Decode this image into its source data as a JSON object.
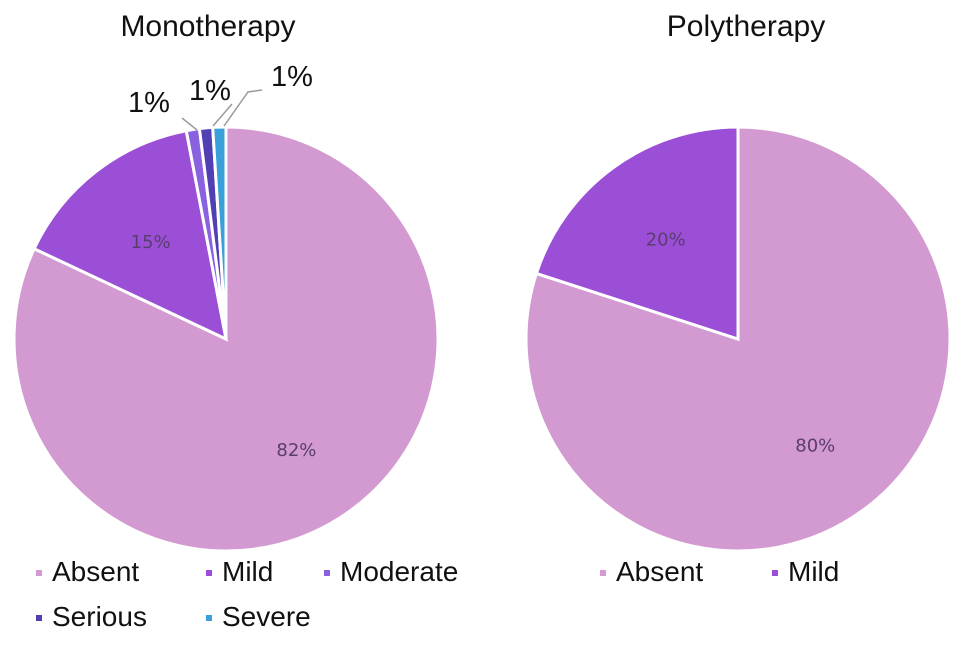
{
  "chart_data": [
    {
      "type": "pie",
      "title": "Monotherapy",
      "categories": [
        "Absent",
        "Mild",
        "Moderate",
        "Serious",
        "Severe"
      ],
      "values": [
        82,
        15,
        1,
        1,
        1
      ],
      "labels": [
        "82%",
        "15%",
        "1%",
        "1%",
        "1%"
      ],
      "colors": [
        "#d29ad0",
        "#9b4fd6",
        "#8a62e0",
        "#5140b4",
        "#3aa0da"
      ],
      "legend_position": "bottom"
    },
    {
      "type": "pie",
      "title": "Polytherapy",
      "categories": [
        "Absent",
        "Mild"
      ],
      "values": [
        80,
        20
      ],
      "labels": [
        "80%",
        "20%"
      ],
      "colors": [
        "#d29ad0",
        "#9b4fd6"
      ],
      "legend_position": "bottom"
    }
  ]
}
